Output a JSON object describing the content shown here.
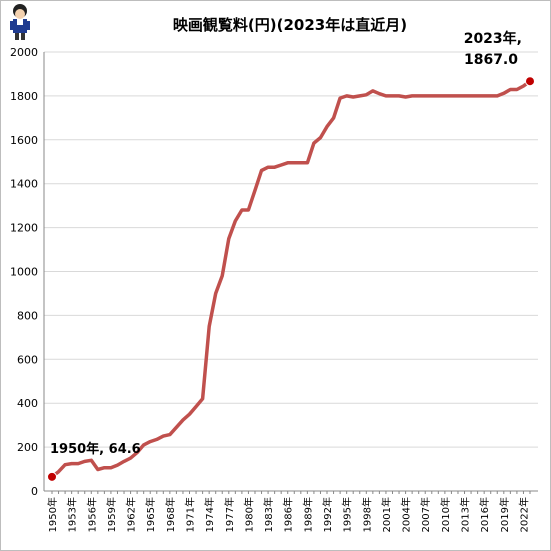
{
  "chart_data": {
    "type": "line",
    "title": "映画観覧料(円)(2023年は直近月)",
    "xlabel": "",
    "ylabel": "",
    "ylim": [
      0,
      2000
    ],
    "yticks": [
      0,
      200,
      400,
      600,
      800,
      1000,
      1200,
      1400,
      1600,
      1800,
      2000
    ],
    "grid": "horizontal",
    "line_color": "#c0504d",
    "marker_color": "#c00000",
    "x": [
      1950,
      1951,
      1952,
      1953,
      1954,
      1955,
      1956,
      1957,
      1958,
      1959,
      1960,
      1961,
      1962,
      1963,
      1964,
      1965,
      1966,
      1967,
      1968,
      1969,
      1970,
      1971,
      1972,
      1973,
      1974,
      1975,
      1976,
      1977,
      1978,
      1979,
      1980,
      1981,
      1982,
      1983,
      1984,
      1985,
      1986,
      1987,
      1988,
      1989,
      1990,
      1991,
      1992,
      1993,
      1994,
      1995,
      1996,
      1997,
      1998,
      1999,
      2000,
      2001,
      2002,
      2003,
      2004,
      2005,
      2006,
      2007,
      2008,
      2009,
      2010,
      2011,
      2012,
      2013,
      2014,
      2015,
      2016,
      2017,
      2018,
      2019,
      2020,
      2021,
      2022,
      2023
    ],
    "x_tick_labels": [
      "1950年",
      "1953年",
      "1956年",
      "1959年",
      "1962年",
      "1965年",
      "1968年",
      "1971年",
      "1974年",
      "1977年",
      "1980年",
      "1983年",
      "1986年",
      "1989年",
      "1992年",
      "1995年",
      "1998年",
      "2001年",
      "2004年",
      "2007年",
      "2010年",
      "2013年",
      "2016年",
      "2019年",
      "2022年"
    ],
    "values": [
      64.6,
      88,
      120,
      125,
      125,
      135,
      140,
      98,
      106,
      106,
      118,
      135,
      150,
      175,
      210,
      225,
      235,
      250,
      257,
      290,
      324,
      350,
      385,
      420,
      750,
      900,
      980,
      1150,
      1230,
      1280,
      1280,
      1370,
      1460,
      1475,
      1475,
      1485,
      1495,
      1495,
      1495,
      1495,
      1585,
      1610,
      1660,
      1700,
      1790,
      1800,
      1795,
      1800,
      1805,
      1823,
      1810,
      1800,
      1800,
      1800,
      1795,
      1800,
      1800,
      1800,
      1800,
      1800,
      1800,
      1800,
      1800,
      1800,
      1800,
      1800,
      1800,
      1800,
      1800,
      1812,
      1829,
      1829,
      1845,
      1867
    ],
    "annotations": [
      {
        "label": "1950年, 64.6",
        "x": 1950,
        "y": 64.6
      },
      {
        "label_line1": "2023年,",
        "label_line2": "1867.0",
        "x": 2023,
        "y": 1867
      }
    ]
  }
}
